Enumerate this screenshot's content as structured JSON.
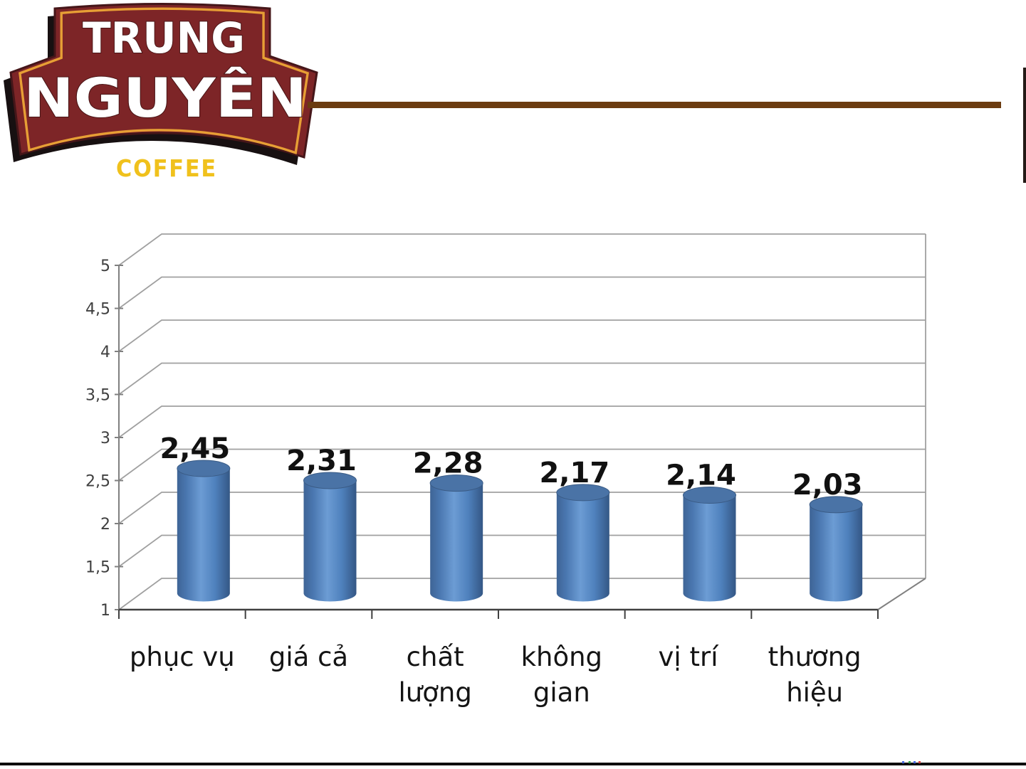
{
  "logo": {
    "line1": "TRUNG",
    "line2": "NGUYÊN",
    "line3": "COFFEE",
    "badge_color": "#7D2527",
    "badge_outline": "#451619",
    "shadow_color": "#171011",
    "border_gold": "#E79F35",
    "text_color": "#FFFFFF",
    "coffee_color": "#F0C11C"
  },
  "decor": {
    "top_rule_color": "#6B3B10",
    "right_bar_color": "#241A16",
    "bottom_rule_color": "#0D0D0D",
    "speck_colors": [
      "#4466DD",
      "#33A04A",
      "#4466DD",
      "#D04040"
    ]
  },
  "chart_data": {
    "type": "bar",
    "subtype": "cylinder-3d",
    "title": "",
    "xlabel": "",
    "ylabel": "",
    "legend": false,
    "grid": true,
    "categories": [
      "phục vụ",
      "giá cả",
      "chất lượng",
      "không gian",
      "vị trí",
      "thương hiệu"
    ],
    "categories_display": [
      [
        "phục vụ"
      ],
      [
        "giá cả"
      ],
      [
        "chất",
        "lượng"
      ],
      [
        "không",
        "gian"
      ],
      [
        "vị trí"
      ],
      [
        "thương",
        "hiệu"
      ]
    ],
    "values": [
      2.45,
      2.31,
      2.28,
      2.17,
      2.14,
      2.03
    ],
    "value_labels": [
      "2,45",
      "2,31",
      "2,28",
      "2,17",
      "2,14",
      "2,03"
    ],
    "y_ticks": [
      "5",
      "4,5",
      "4",
      "3,5",
      "3",
      "2,5",
      "2",
      "1,5",
      "1"
    ],
    "y_tick_values": [
      5,
      4.5,
      4,
      3.5,
      3,
      2.5,
      2,
      1.5,
      1
    ],
    "ylim": [
      1,
      5
    ],
    "bar_color": "#4F81BD",
    "bar_top_color": "#4A73A6",
    "grid_color": "#A0A0A0",
    "axis_color": "#808080",
    "baseline_color": "#404040",
    "label_color": "#141414"
  }
}
